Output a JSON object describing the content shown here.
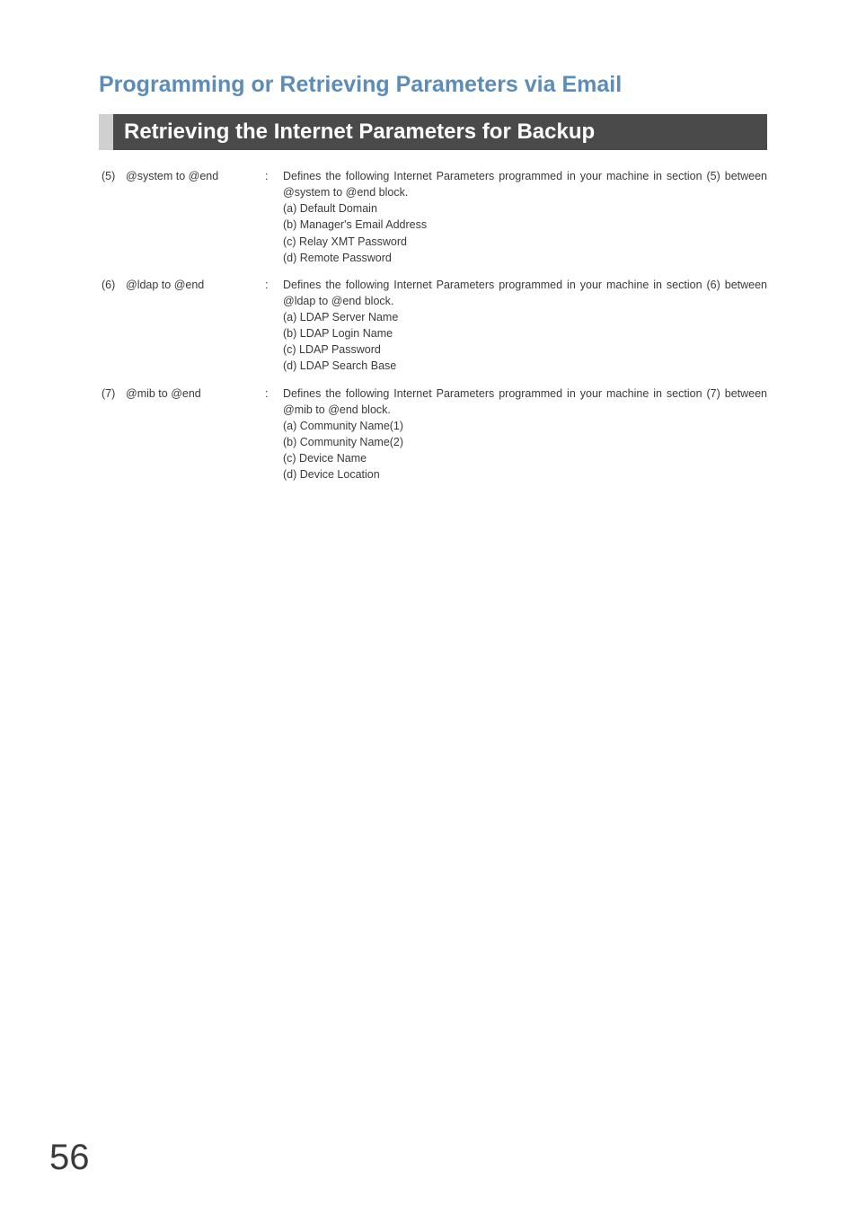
{
  "colors": {
    "title_color": "#5b8db8",
    "header_bg": "#4a4a4a",
    "header_border": "#d0d0d0",
    "header_text": "#ffffff",
    "body_text": "#3a3a3a",
    "page_bg": "#ffffff"
  },
  "typography": {
    "title_fontsize": 25,
    "header_fontsize": 24,
    "body_fontsize": 12.5,
    "pagenum_fontsize": 40
  },
  "main_title": "Programming or Retrieving Parameters via Email",
  "section_header": "Retrieving the Internet Parameters for Backup",
  "rows": [
    {
      "num": "(5)",
      "label": "@system to @end",
      "colon": ":",
      "desc_intro": "Defines the following Internet Parameters programmed in your machine in section (5) between @system to @end block.",
      "items": [
        "(a) Default Domain",
        "(b) Manager's Email Address",
        "(c) Relay XMT Password",
        "(d) Remote Password"
      ]
    },
    {
      "num": "(6)",
      "label": "@ldap to @end",
      "colon": ":",
      "desc_intro": "Defines the following Internet Parameters programmed in your machine in section (6) between @ldap to @end block.",
      "items": [
        "(a) LDAP Server Name",
        "(b) LDAP Login Name",
        "(c) LDAP Password",
        "(d) LDAP Search Base"
      ]
    },
    {
      "num": "(7)",
      "label": "@mib to @end",
      "colon": ":",
      "desc_intro": "Defines the following Internet Parameters programmed in your machine in section (7) between @mib to @end block.",
      "items": [
        "(a) Community Name(1)",
        "(b) Community Name(2)",
        "(c) Device Name",
        "(d) Device Location"
      ]
    }
  ],
  "page_number": "56"
}
